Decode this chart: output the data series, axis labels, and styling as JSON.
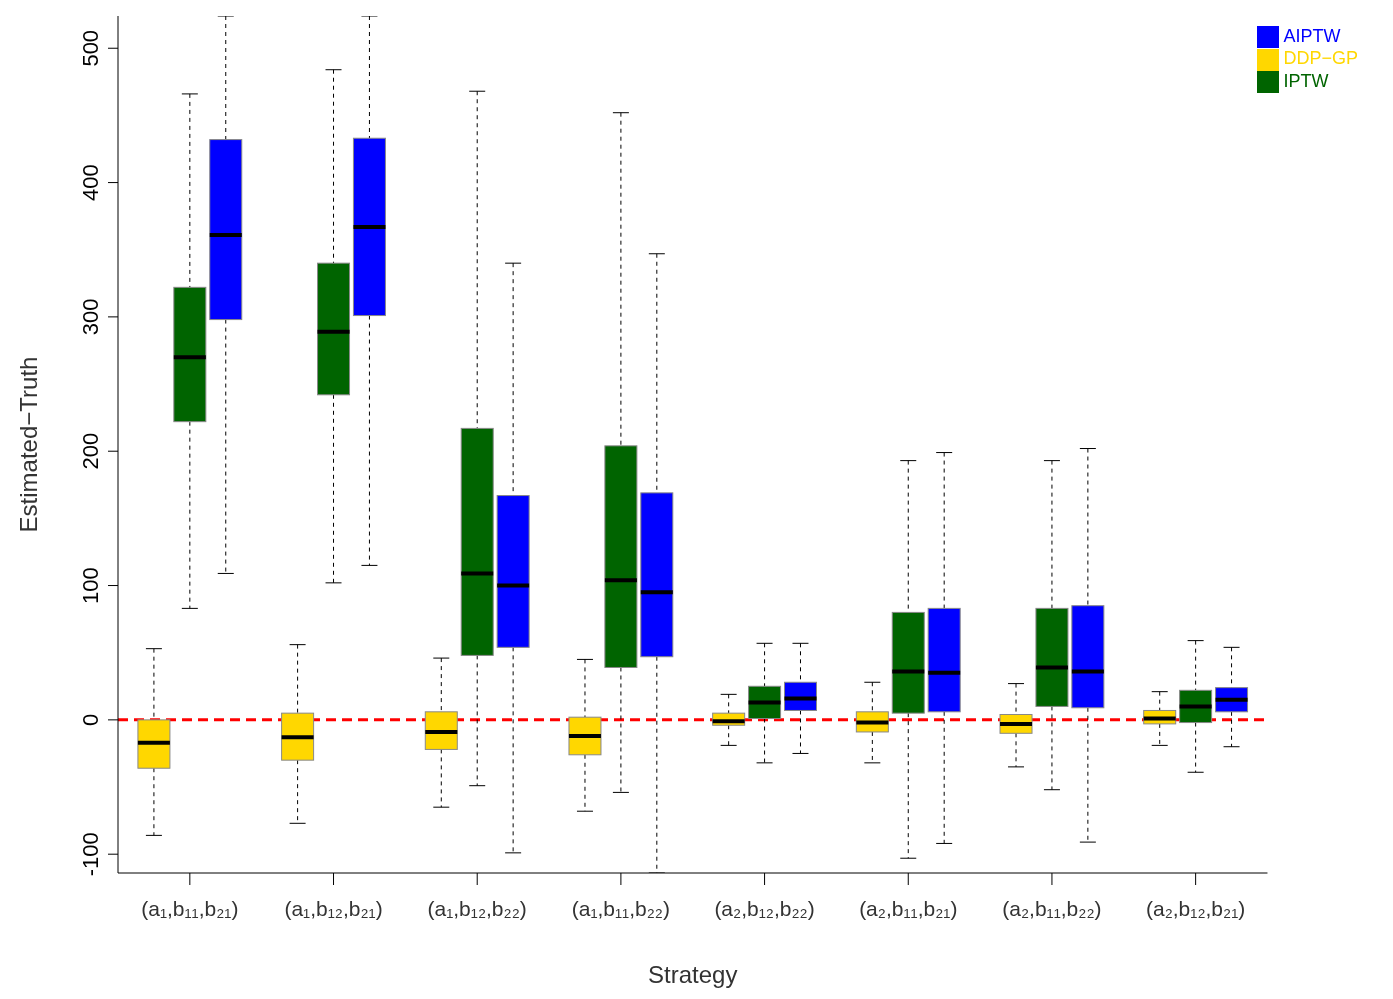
{
  "chart_data": {
    "type": "box",
    "xlabel": "Strategy",
    "ylabel": "Estimated−Truth",
    "categories": [
      "(a₁,b₁₁,b₂₁)",
      "(a₁,b₁₂,b₂₁)",
      "(a₁,b₁₂,b₂₂)",
      "(a₁,b₁₁,b₂₂)",
      "(a₂,b₁₂,b₂₂)",
      "(a₂,b₁₁,b₂₁)",
      "(a₂,b₁₁,b₂₂)",
      "(a₂,b₁₂,b₂₁)"
    ],
    "series": [
      {
        "name": "DDP−GP",
        "color": "#ffd700",
        "boxes": [
          {
            "low": -86,
            "q1": -36,
            "median": -17,
            "q3": 0,
            "high": 53
          },
          {
            "low": -77,
            "q1": -30,
            "median": -13,
            "q3": 5,
            "high": 56
          },
          {
            "low": -65,
            "q1": -22,
            "median": -9,
            "q3": 6,
            "high": 46
          },
          {
            "low": -68,
            "q1": -26,
            "median": -12,
            "q3": 2,
            "high": 45
          },
          {
            "low": -19,
            "q1": -4,
            "median": -1,
            "q3": 5,
            "high": 19
          },
          {
            "low": -32,
            "q1": -9,
            "median": -2,
            "q3": 6,
            "high": 28
          },
          {
            "low": -35,
            "q1": -10,
            "median": -3,
            "q3": 4,
            "high": 27
          },
          {
            "low": -19,
            "q1": -3,
            "median": 1,
            "q3": 7,
            "high": 21
          }
        ]
      },
      {
        "name": "IPTW",
        "color": "#006400",
        "boxes": [
          {
            "low": 83,
            "q1": 222,
            "median": 270,
            "q3": 322,
            "high": 466
          },
          {
            "low": 102,
            "q1": 242,
            "median": 289,
            "q3": 340,
            "high": 484
          },
          {
            "low": -49,
            "q1": 48,
            "median": 109,
            "q3": 217,
            "high": 468
          },
          {
            "low": -54,
            "q1": 39,
            "median": 104,
            "q3": 204,
            "high": 452
          },
          {
            "low": -32,
            "q1": 1,
            "median": 13,
            "q3": 25,
            "high": 57
          },
          {
            "low": -103,
            "q1": 5,
            "median": 36,
            "q3": 80,
            "high": 193
          },
          {
            "low": -52,
            "q1": 10,
            "median": 39,
            "q3": 83,
            "high": 193
          },
          {
            "low": -39,
            "q1": -2,
            "median": 10,
            "q3": 22,
            "high": 59
          }
        ]
      },
      {
        "name": "AIPTW",
        "color": "#0000ff",
        "boxes": [
          {
            "low": 109,
            "q1": 298,
            "median": 361,
            "q3": 432,
            "high": 524
          },
          {
            "low": 115,
            "q1": 301,
            "median": 367,
            "q3": 433,
            "high": 524
          },
          {
            "low": -99,
            "q1": 54,
            "median": 100,
            "q3": 167,
            "high": 340
          },
          {
            "low": -114,
            "q1": 47,
            "median": 95,
            "q3": 169,
            "high": 347
          },
          {
            "low": -25,
            "q1": 7,
            "median": 16,
            "q3": 28,
            "high": 57
          },
          {
            "low": -92,
            "q1": 6,
            "median": 35,
            "q3": 83,
            "high": 199
          },
          {
            "low": -91,
            "q1": 9,
            "median": 36,
            "q3": 85,
            "high": 202
          },
          {
            "low": -20,
            "q1": 6,
            "median": 15,
            "q3": 24,
            "high": 54
          }
        ]
      }
    ],
    "ylim": [
      -114,
      524
    ],
    "yticks": [
      -100,
      0,
      100,
      200,
      300,
      400,
      500
    ],
    "ref_lines": [
      {
        "axis": "y",
        "value": 0,
        "color": "#ff0000",
        "line_style": "dashed"
      }
    ],
    "legend": "top right"
  }
}
